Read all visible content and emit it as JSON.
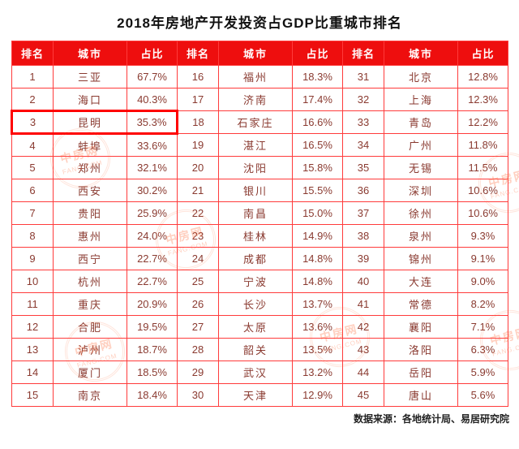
{
  "title": "2018年房地产开发投资占GDP比重城市排名",
  "footer": "数据来源：各地统计局、易居研究院",
  "watermark": {
    "line1": "中房网",
    "line2": "FANG.COM"
  },
  "colors": {
    "header_bg": "#ee0e0e",
    "header_text": "#ffffff",
    "grid_border": "#ff3b3b",
    "cell_text": "#8a3a30",
    "highlight_border": "#ff0000",
    "watermark": "#ff6e3c"
  },
  "chart_data": {
    "type": "table",
    "title": "2018年房地产开发投资占GDP比重城市排名",
    "headers": [
      "排名",
      "城市",
      "占比"
    ],
    "groups": [
      {
        "rows": [
          [
            "1",
            "三亚",
            "67.7%"
          ],
          [
            "2",
            "海口",
            "40.3%"
          ],
          [
            "3",
            "昆明",
            "35.3%"
          ],
          [
            "4",
            "蚌埠",
            "33.6%"
          ],
          [
            "5",
            "郑州",
            "32.1%"
          ],
          [
            "6",
            "西安",
            "30.2%"
          ],
          [
            "7",
            "贵阳",
            "25.9%"
          ],
          [
            "8",
            "惠州",
            "24.0%"
          ],
          [
            "9",
            "西宁",
            "22.7%"
          ],
          [
            "10",
            "杭州",
            "22.7%"
          ],
          [
            "11",
            "重庆",
            "20.9%"
          ],
          [
            "12",
            "合肥",
            "19.5%"
          ],
          [
            "13",
            "泸州",
            "18.7%"
          ],
          [
            "14",
            "厦门",
            "18.5%"
          ],
          [
            "15",
            "南京",
            "18.4%"
          ]
        ]
      },
      {
        "rows": [
          [
            "16",
            "福州",
            "18.3%"
          ],
          [
            "17",
            "济南",
            "17.4%"
          ],
          [
            "18",
            "石家庄",
            "16.6%"
          ],
          [
            "19",
            "湛江",
            "16.5%"
          ],
          [
            "20",
            "沈阳",
            "15.8%"
          ],
          [
            "21",
            "银川",
            "15.5%"
          ],
          [
            "22",
            "南昌",
            "15.0%"
          ],
          [
            "23",
            "桂林",
            "14.9%"
          ],
          [
            "24",
            "成都",
            "14.8%"
          ],
          [
            "25",
            "宁波",
            "14.8%"
          ],
          [
            "26",
            "长沙",
            "13.7%"
          ],
          [
            "27",
            "太原",
            "13.6%"
          ],
          [
            "28",
            "韶关",
            "13.5%"
          ],
          [
            "29",
            "武汉",
            "13.2%"
          ],
          [
            "30",
            "天津",
            "12.9%"
          ]
        ]
      },
      {
        "rows": [
          [
            "31",
            "北京",
            "12.8%"
          ],
          [
            "32",
            "上海",
            "12.3%"
          ],
          [
            "33",
            "青岛",
            "12.2%"
          ],
          [
            "34",
            "广州",
            "11.8%"
          ],
          [
            "35",
            "无锡",
            "11.5%"
          ],
          [
            "36",
            "深圳",
            "10.6%"
          ],
          [
            "37",
            "徐州",
            "10.6%"
          ],
          [
            "38",
            "泉州",
            "9.3%"
          ],
          [
            "39",
            "锦州",
            "9.1%"
          ],
          [
            "40",
            "大连",
            "9.0%"
          ],
          [
            "41",
            "常德",
            "8.2%"
          ],
          [
            "42",
            "襄阳",
            "7.1%"
          ],
          [
            "43",
            "洛阳",
            "6.3%"
          ],
          [
            "44",
            "岳阳",
            "5.9%"
          ],
          [
            "45",
            "唐山",
            "5.6%"
          ]
        ]
      }
    ],
    "highlight": {
      "group": 0,
      "row": 2,
      "note": "昆明行以红色粗框突出显示"
    }
  }
}
